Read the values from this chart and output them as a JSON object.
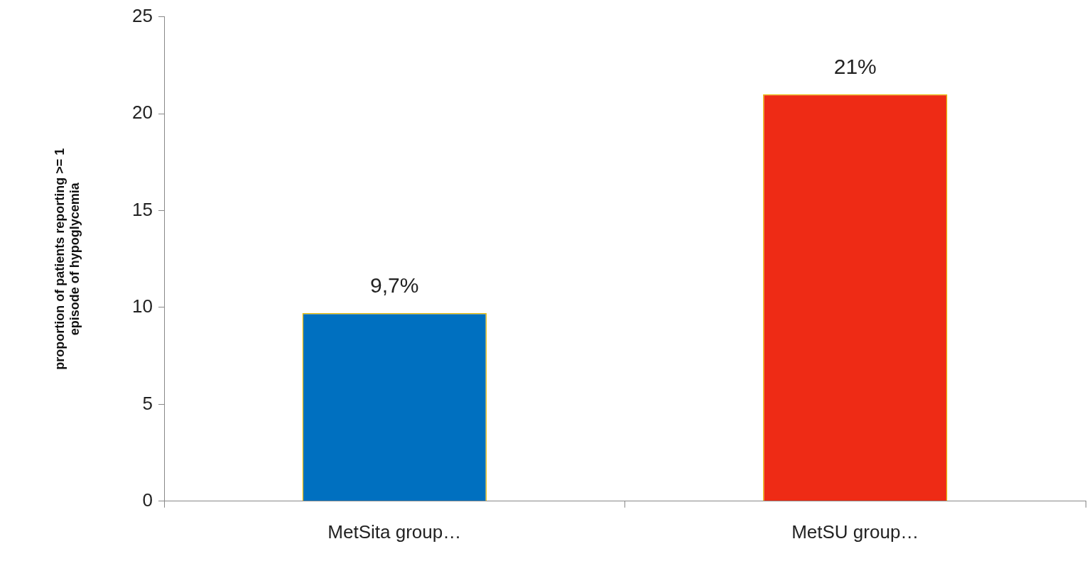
{
  "chart_data": {
    "type": "bar",
    "ylabel": "proportion of patients reporting >= 1 episode of hypoglycemia",
    "categories": [
      "MetSita group…",
      "MetSU group…"
    ],
    "values": [
      9.7,
      21
    ],
    "colors": [
      "#0070c0",
      "#ee2b15"
    ],
    "value_labels": [
      "9,7%",
      "21%"
    ],
    "ylim": [
      0,
      25
    ],
    "yticks": [
      0,
      5,
      10,
      15,
      20,
      25
    ],
    "grid": false,
    "legend": false
  }
}
